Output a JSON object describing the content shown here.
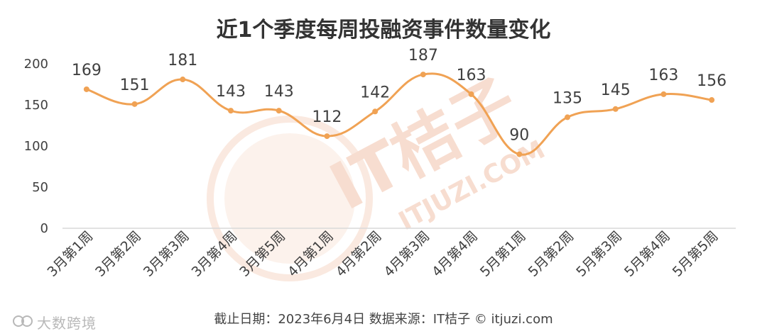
{
  "chart_data": {
    "type": "line",
    "title": "近1个季度每周投融资事件数量变化",
    "categories": [
      "3月第1周",
      "3月第2周",
      "3月第3周",
      "3月第4周",
      "3月第5周",
      "4月第1周",
      "4月第2周",
      "4月第3周",
      "4月第4周",
      "5月第1周",
      "5月第2周",
      "5月第3周",
      "5月第4周",
      "5月第5周"
    ],
    "values": [
      169,
      151,
      181,
      143,
      143,
      112,
      142,
      187,
      163,
      90,
      135,
      145,
      163,
      156
    ],
    "ylim": [
      0,
      200
    ],
    "yticks": [
      0,
      50,
      100,
      150,
      200
    ],
    "grid": false,
    "legend": "none",
    "xlabel": "",
    "ylabel": ""
  },
  "colors": {
    "line": "#F0A254",
    "title": "#333333",
    "axis_text": "#404040",
    "watermark": "#F7DDD0"
  },
  "watermark": {
    "text": "IT桔子",
    "subtext": "ITJUZI.COM"
  },
  "footer": {
    "text": "截止日期：2023年6月4日    数据来源：IT桔子 © itjuzi.com"
  },
  "brand": {
    "text": "大数跨境"
  }
}
